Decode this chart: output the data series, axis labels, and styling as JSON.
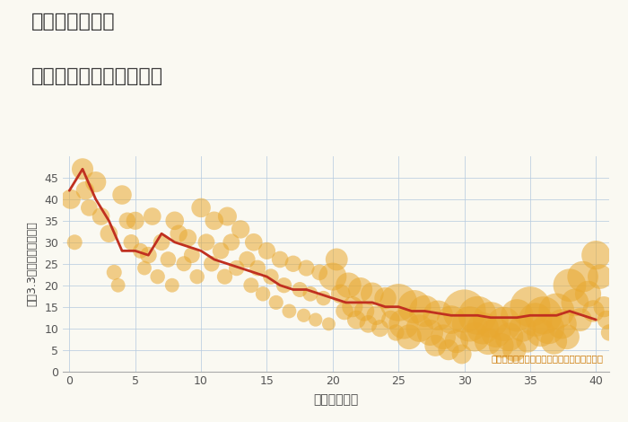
{
  "title_line1": "三重県志摩市の",
  "title_line2": "築年数別中古戸建て価格",
  "xlabel": "築年数（年）",
  "ylabel": "坪（3.3㎡）単価（万円）",
  "annotation": "円の大きさは、取引のあった物件面積を示す",
  "xlim": [
    -0.5,
    41
  ],
  "ylim": [
    0,
    50
  ],
  "xticks": [
    0,
    5,
    10,
    15,
    20,
    25,
    30,
    35,
    40
  ],
  "yticks": [
    0,
    5,
    10,
    15,
    20,
    25,
    30,
    35,
    40,
    45
  ],
  "bg_color": "#faf9f2",
  "scatter_color": "#e8a830",
  "scatter_alpha": 0.55,
  "line_color": "#c03020",
  "line_width": 2.0,
  "trend_x": [
    0,
    1,
    2,
    3,
    4,
    5,
    6,
    7,
    8,
    9,
    10,
    11,
    12,
    13,
    14,
    15,
    16,
    17,
    18,
    19,
    20,
    21,
    22,
    23,
    24,
    25,
    26,
    27,
    28,
    29,
    30,
    31,
    32,
    33,
    34,
    35,
    36,
    37,
    38,
    39,
    40
  ],
  "trend_y": [
    42,
    47,
    40,
    35,
    28,
    28,
    27,
    32,
    30,
    29,
    28,
    26,
    25,
    24,
    23,
    22,
    20,
    19,
    19,
    18,
    17,
    16,
    16,
    16,
    15,
    15,
    14,
    14,
    13.5,
    13,
    13,
    13,
    12.5,
    12.5,
    12.5,
    13,
    13,
    13,
    14,
    13,
    12
  ],
  "scatter_data": [
    [
      0.1,
      40,
      250
    ],
    [
      0.4,
      30,
      150
    ],
    [
      1.0,
      47,
      300
    ],
    [
      1.2,
      42,
      220
    ],
    [
      1.5,
      38,
      180
    ],
    [
      2.0,
      44,
      280
    ],
    [
      2.4,
      36,
      200
    ],
    [
      3.0,
      32,
      200
    ],
    [
      3.4,
      23,
      150
    ],
    [
      3.7,
      20,
      130
    ],
    [
      4.0,
      41,
      240
    ],
    [
      4.4,
      35,
      180
    ],
    [
      4.7,
      30,
      160
    ],
    [
      5.0,
      35,
      210
    ],
    [
      5.4,
      28,
      150
    ],
    [
      5.7,
      24,
      130
    ],
    [
      6.0,
      27,
      180
    ],
    [
      6.3,
      36,
      200
    ],
    [
      6.7,
      22,
      140
    ],
    [
      7.0,
      30,
      180
    ],
    [
      7.5,
      26,
      160
    ],
    [
      7.8,
      20,
      130
    ],
    [
      8.0,
      35,
      220
    ],
    [
      8.3,
      32,
      195
    ],
    [
      8.7,
      25,
      150
    ],
    [
      9.0,
      31,
      200
    ],
    [
      9.3,
      27,
      165
    ],
    [
      9.7,
      22,
      140
    ],
    [
      10.0,
      38,
      240
    ],
    [
      10.4,
      30,
      185
    ],
    [
      10.8,
      25,
      160
    ],
    [
      11.0,
      35,
      220
    ],
    [
      11.5,
      28,
      180
    ],
    [
      11.8,
      22,
      155
    ],
    [
      12.0,
      36,
      230
    ],
    [
      12.3,
      30,
      185
    ],
    [
      12.7,
      24,
      158
    ],
    [
      13.0,
      33,
      215
    ],
    [
      13.5,
      26,
      175
    ],
    [
      13.8,
      20,
      150
    ],
    [
      14.0,
      30,
      200
    ],
    [
      14.3,
      24,
      165
    ],
    [
      14.7,
      18,
      140
    ],
    [
      15.0,
      28,
      190
    ],
    [
      15.3,
      22,
      160
    ],
    [
      15.7,
      16,
      135
    ],
    [
      16.0,
      26,
      180
    ],
    [
      16.3,
      20,
      155
    ],
    [
      16.7,
      14,
      130
    ],
    [
      17.0,
      25,
      175
    ],
    [
      17.5,
      19,
      150
    ],
    [
      17.8,
      13,
      120
    ],
    [
      18.0,
      24,
      170
    ],
    [
      18.3,
      18,
      145
    ],
    [
      18.7,
      12,
      120
    ],
    [
      19.0,
      23,
      165
    ],
    [
      19.3,
      17,
      140
    ],
    [
      19.7,
      11,
      115
    ],
    [
      20.0,
      22,
      500
    ],
    [
      20.3,
      26,
      320
    ],
    [
      20.6,
      18,
      240
    ],
    [
      20.9,
      14,
      200
    ],
    [
      21.2,
      20,
      420
    ],
    [
      21.5,
      15,
      280
    ],
    [
      21.8,
      12,
      220
    ],
    [
      22.1,
      19,
      380
    ],
    [
      22.4,
      14,
      260
    ],
    [
      22.7,
      11,
      200
    ],
    [
      23.0,
      18,
      340
    ],
    [
      23.3,
      13,
      240
    ],
    [
      23.6,
      10,
      190
    ],
    [
      24.0,
      17,
      310
    ],
    [
      24.4,
      12,
      220
    ],
    [
      24.8,
      9,
      175
    ],
    [
      25.0,
      16,
      900
    ],
    [
      25.4,
      11,
      580
    ],
    [
      25.8,
      8,
      400
    ],
    [
      26.2,
      15,
      720
    ],
    [
      26.6,
      10,
      480
    ],
    [
      27.0,
      14,
      640
    ],
    [
      27.4,
      9,
      440
    ],
    [
      27.8,
      6,
      300
    ],
    [
      28.0,
      13,
      580
    ],
    [
      28.4,
      8,
      400
    ],
    [
      28.8,
      5,
      280
    ],
    [
      29.0,
      12,
      520
    ],
    [
      29.4,
      7,
      360
    ],
    [
      29.8,
      4,
      250
    ],
    [
      30.0,
      14,
      1200
    ],
    [
      30.4,
      11,
      800
    ],
    [
      30.8,
      8,
      550
    ],
    [
      31.0,
      13,
      950
    ],
    [
      31.4,
      10,
      660
    ],
    [
      31.8,
      7,
      470
    ],
    [
      32.0,
      12,
      820
    ],
    [
      32.4,
      9,
      570
    ],
    [
      32.8,
      6,
      400
    ],
    [
      33.0,
      11,
      750
    ],
    [
      33.4,
      8,
      520
    ],
    [
      33.8,
      5,
      360
    ],
    [
      34.0,
      13,
      680
    ],
    [
      34.4,
      10,
      470
    ],
    [
      34.8,
      7,
      330
    ],
    [
      35.0,
      15,
      1050
    ],
    [
      35.4,
      12,
      730
    ],
    [
      35.8,
      9,
      510
    ],
    [
      36.0,
      13,
      920
    ],
    [
      36.4,
      10,
      640
    ],
    [
      36.8,
      7,
      450
    ],
    [
      37.0,
      14,
      820
    ],
    [
      37.4,
      11,
      570
    ],
    [
      37.8,
      8,
      400
    ],
    [
      38.0,
      20,
      700
    ],
    [
      38.4,
      16,
      490
    ],
    [
      38.8,
      12,
      350
    ],
    [
      39.0,
      22,
      620
    ],
    [
      39.4,
      18,
      440
    ],
    [
      39.8,
      14,
      310
    ],
    [
      40.0,
      27,
      540
    ],
    [
      40.3,
      22,
      390
    ],
    [
      40.6,
      15,
      280
    ],
    [
      40.8,
      12,
      220
    ],
    [
      41.0,
      9,
      175
    ]
  ]
}
